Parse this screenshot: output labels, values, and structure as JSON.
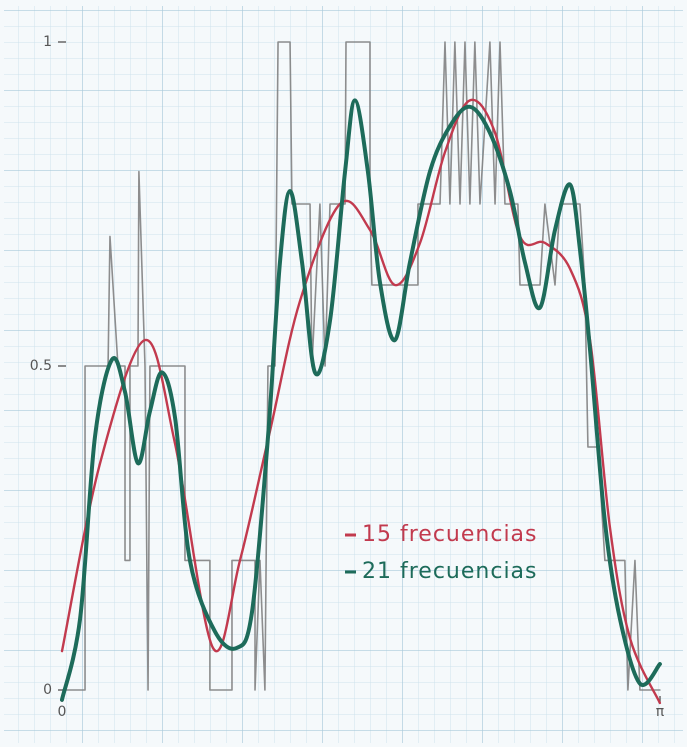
{
  "chart_data": {
    "type": "line",
    "xlim": [
      0,
      3.14159
    ],
    "ylim": [
      0,
      1
    ],
    "xticks": [
      0,
      {
        "value": 3.14159,
        "label": "π"
      }
    ],
    "yticks": [
      0,
      0.5,
      1
    ],
    "series": [
      {
        "name": null,
        "color": "#7a7a7a",
        "x": [
          0,
          0.121,
          0.121,
          0.242,
          0.252,
          0.294,
          0.331,
          0.331,
          0.357,
          0.357,
          0.399,
          0.404,
          0.436,
          0.452,
          0.462,
          0.646,
          0.646,
          0.777,
          0.777,
          0.893,
          0.893,
          1.014,
          1.014,
          1.04,
          1.066,
          1.082,
          1.119,
          1.135,
          1.198,
          1.208,
          1.303,
          1.313,
          1.355,
          1.382,
          1.408,
          1.487,
          1.492,
          1.618,
          1.618,
          1.628,
          1.87,
          1.87,
          1.986,
          2.012,
          2.038,
          2.064,
          2.091,
          2.117,
          2.143,
          2.169,
          2.196,
          2.248,
          2.275,
          2.301,
          2.327,
          2.395,
          2.406,
          2.511,
          2.537,
          2.59,
          2.616,
          2.721,
          2.747,
          2.763,
          2.816,
          2.852,
          2.957,
          2.973,
          3.01,
          3.036,
          3.141
        ],
        "values": [
          0,
          0,
          0.5,
          0.5,
          0.7,
          0.5,
          0.5,
          0.2,
          0.2,
          0.5,
          0.5,
          0.8,
          0.5,
          0,
          0.5,
          0.5,
          0.2,
          0.2,
          0,
          0,
          0.2,
          0.2,
          0,
          0.2,
          0,
          0.5,
          0.5,
          1,
          1,
          0.75,
          0.75,
          0.5,
          0.75,
          0.5,
          0.75,
          0.75,
          1,
          1,
          0.75,
          0.625,
          0.625,
          0.75,
          0.75,
          1,
          0.75,
          1,
          0.75,
          1,
          0.75,
          1,
          0.75,
          1,
          0.75,
          1,
          0.75,
          0.75,
          0.625,
          0.625,
          0.75,
          0.625,
          0.75,
          0.75,
          0.625,
          0.375,
          0.375,
          0.2,
          0.2,
          0,
          0.2,
          0,
          0
        ]
      },
      {
        "name": "15 frecuencias",
        "color": "#c23a4e",
        "x": [
          0,
          0.2,
          0.436,
          0.594,
          0.793,
          0.935,
          1.093,
          1.25,
          1.46,
          1.618,
          1.749,
          1.881,
          2.012,
          2.143,
          2.275,
          2.406,
          2.537,
          2.669,
          2.774,
          2.879,
          2.984,
          3.141
        ],
        "values": [
          0.06,
          0.35,
          0.54,
          0.38,
          0.065,
          0.2,
          0.4,
          0.6,
          0.75,
          0.71,
          0.625,
          0.69,
          0.83,
          0.91,
          0.86,
          0.7,
          0.69,
          0.65,
          0.54,
          0.25,
          0.08,
          -0.02
        ]
      },
      {
        "name": "21 frecuencias",
        "color": "#1d6b5a",
        "x": [
          0,
          0.095,
          0.173,
          0.263,
          0.331,
          0.399,
          0.462,
          0.525,
          0.594,
          0.672,
          0.804,
          0.919,
          0.998,
          1.082,
          1.145,
          1.198,
          1.261,
          1.329,
          1.408,
          1.487,
          1.539,
          1.607,
          1.67,
          1.749,
          1.828,
          1.933,
          2.038,
          2.143,
          2.248,
          2.353,
          2.432,
          2.511,
          2.59,
          2.669,
          2.721,
          2.774,
          2.852,
          2.931,
          3.036,
          3.141
        ],
        "values": [
          -0.015,
          0.11,
          0.39,
          0.51,
          0.46,
          0.35,
          0.43,
          0.49,
          0.42,
          0.2,
          0.09,
          0.065,
          0.12,
          0.39,
          0.66,
          0.77,
          0.66,
          0.49,
          0.57,
          0.8,
          0.91,
          0.8,
          0.63,
          0.54,
          0.66,
          0.8,
          0.87,
          0.9,
          0.86,
          0.77,
          0.66,
          0.59,
          0.71,
          0.78,
          0.68,
          0.525,
          0.26,
          0.11,
          0.01,
          0.04
        ]
      }
    ]
  }
}
